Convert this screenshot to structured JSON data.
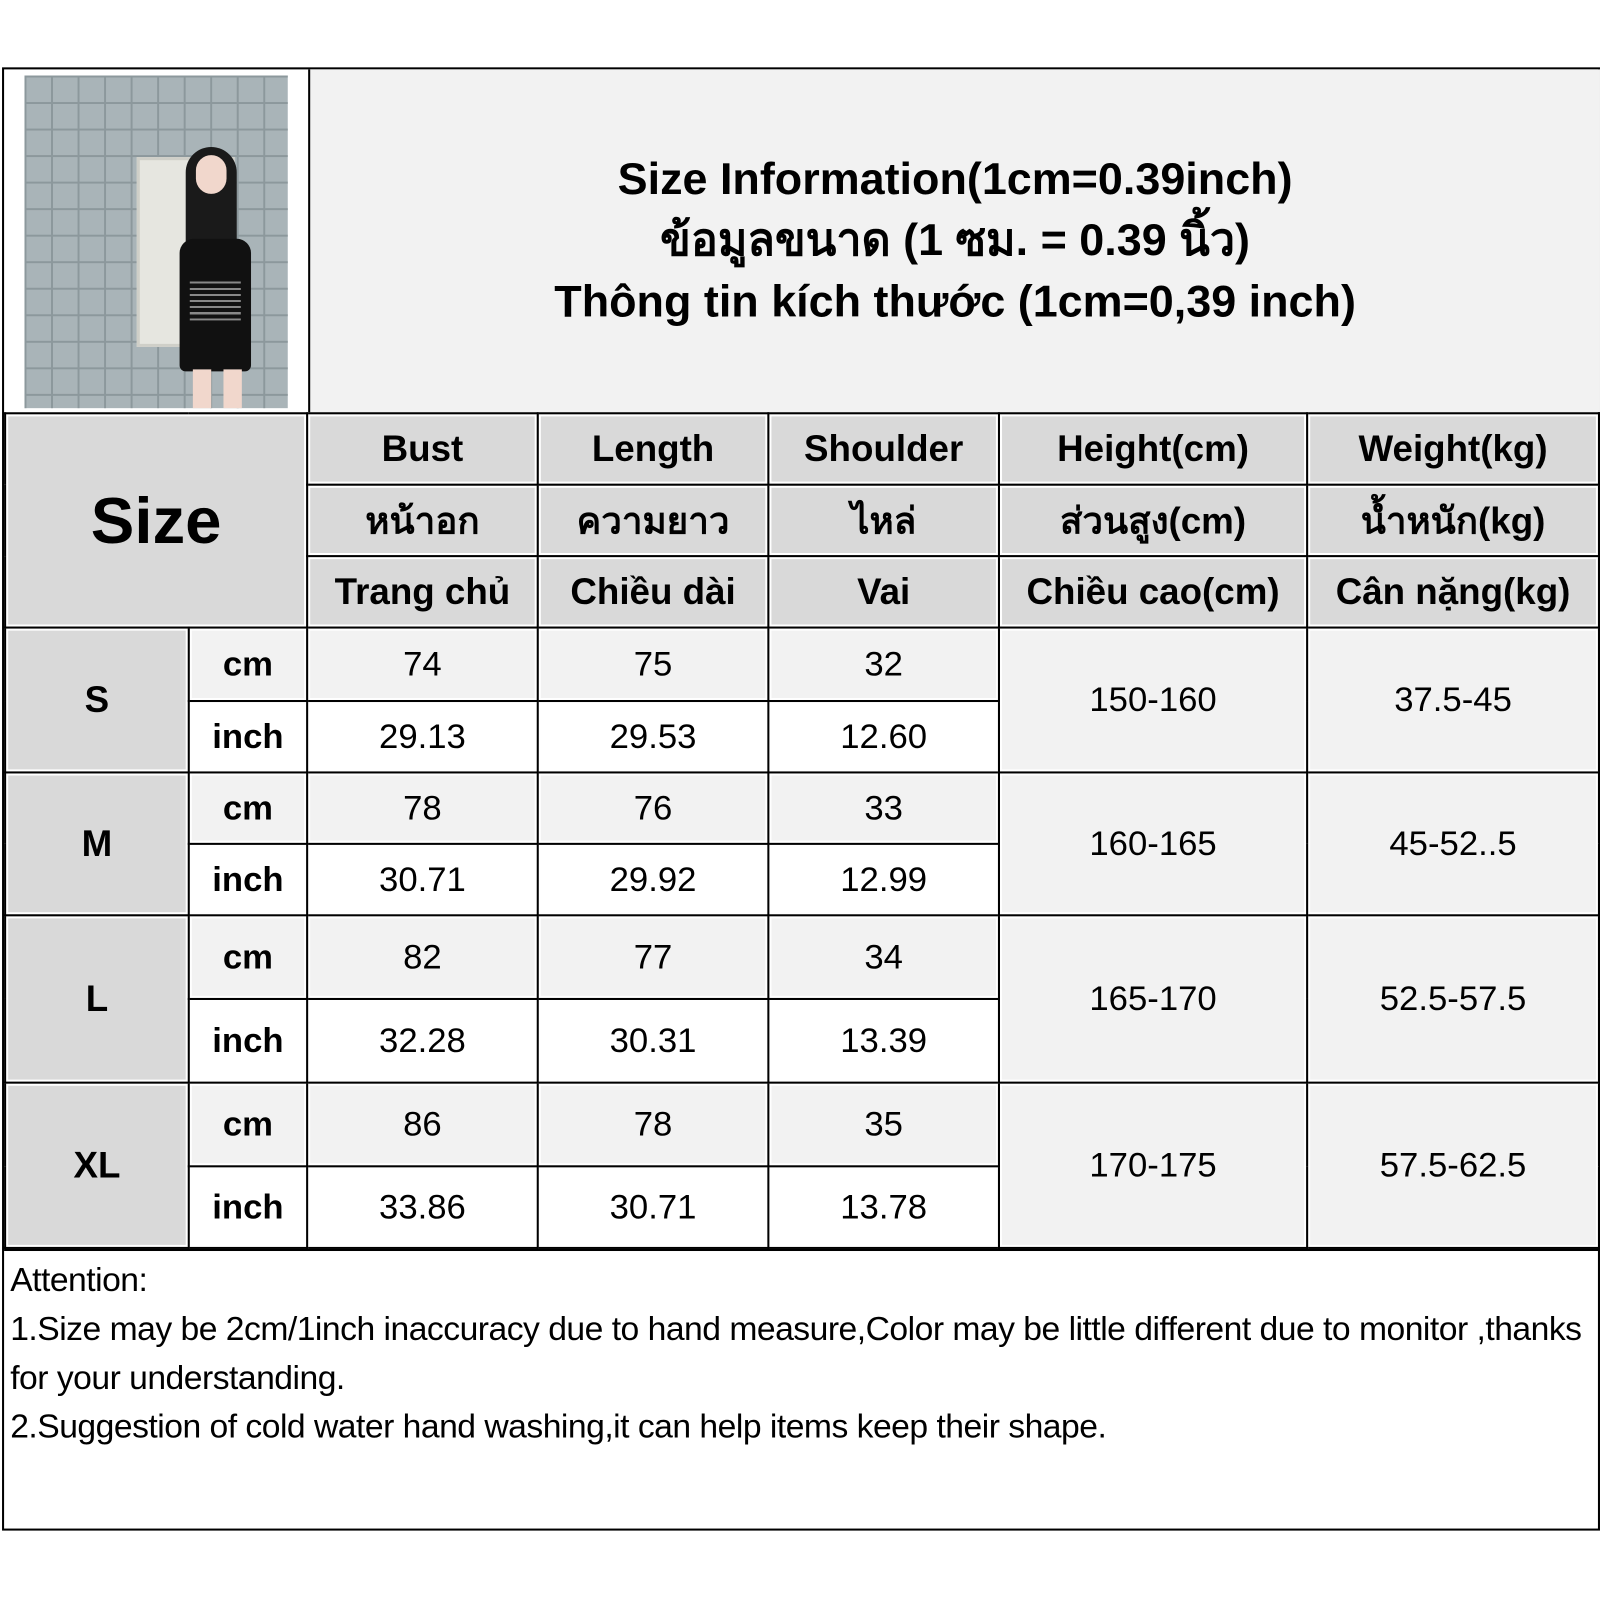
{
  "title_lines": [
    "Size Information(1cm=0.39inch)",
    "ข้อมูลขนาด (1 ซม. = 0.39 นิ้ว)",
    "Thông tin kích thước (1cm=0,39 inch)"
  ],
  "size_header": "Size",
  "columns": [
    {
      "en": "Bust",
      "th": "หน้าอก",
      "vi": "Trang chủ"
    },
    {
      "en": "Length",
      "th": "ความยาว",
      "vi": "Chiều dài"
    },
    {
      "en": "Shoulder",
      "th": "ไหล่",
      "vi": "Vai"
    },
    {
      "en": "Height(cm)",
      "th": "ส่วนสูง(cm)",
      "vi": "Chiều cao(cm)"
    },
    {
      "en": "Weight(kg)",
      "th": "น้ำหนัก(kg)",
      "vi": "Cân nặng(kg)"
    }
  ],
  "units": {
    "cm": "cm",
    "inch": "inch"
  },
  "rows": [
    {
      "size": "S",
      "cm": [
        "74",
        "75",
        "32"
      ],
      "inch": [
        "29.13",
        "29.53",
        "12.60"
      ],
      "height": "150-160",
      "weight": "37.5-45"
    },
    {
      "size": "M",
      "cm": [
        "78",
        "76",
        "33"
      ],
      "inch": [
        "30.71",
        "29.92",
        "12.99"
      ],
      "height": "160-165",
      "weight": "45-52..5"
    },
    {
      "size": "L",
      "cm": [
        "82",
        "77",
        "34"
      ],
      "inch": [
        "32.28",
        "30.31",
        "13.39"
      ],
      "height": "165-170",
      "weight": "52.5-57.5"
    },
    {
      "size": "XL",
      "cm": [
        "86",
        "78",
        "35"
      ],
      "inch": [
        "33.86",
        "30.71",
        "13.78"
      ],
      "height": "170-175",
      "weight": "57.5-62.5"
    }
  ],
  "attention": {
    "heading": "Attention:",
    "lines": [
      "1.Size may be 2cm/1inch inaccuracy due to hand measure,Color may be little different due to monitor ,thanks for your understanding.",
      "2.Suggestion of cold water hand washing,it can help items keep their shape."
    ]
  },
  "colors": {
    "header_bg": "#d9d9d9",
    "cell_bg": "#f2f2f2",
    "border": "#000000"
  }
}
